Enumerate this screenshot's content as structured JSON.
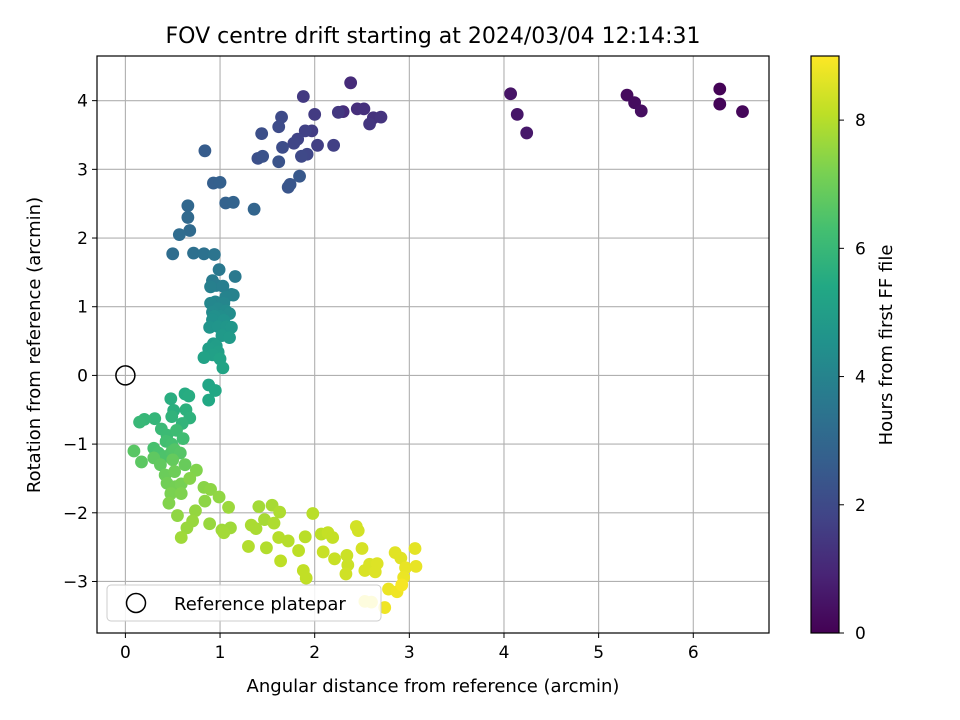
{
  "chart_data": {
    "type": "scatter",
    "title": "FOV centre drift starting at 2024/03/04 12:14:31",
    "xlabel": "Angular distance from reference (arcmin)",
    "ylabel": "Rotation from reference (arcmin)",
    "xlim": [
      -0.3,
      6.8
    ],
    "ylim": [
      -3.75,
      4.65
    ],
    "xticks": [
      0,
      1,
      2,
      3,
      4,
      5,
      6
    ],
    "yticks": [
      -3,
      -2,
      -1,
      0,
      1,
      2,
      3,
      4
    ],
    "grid": true,
    "colorbar": {
      "label": "Hours from first FF file",
      "colormap": "viridis",
      "range": [
        0,
        9
      ],
      "ticks": [
        0,
        2,
        4,
        6,
        8
      ]
    },
    "legend": {
      "position": "bottom-left",
      "entries": [
        {
          "label": "Reference platepar",
          "marker": "open-circle"
        }
      ]
    },
    "reference_point": {
      "x": 0,
      "y": 0
    },
    "series": [
      {
        "columns": [
          "x",
          "y",
          "hours"
        ],
        "points": [
          [
            6.28,
            4.17,
            0.05
          ],
          [
            6.28,
            3.95,
            0.1
          ],
          [
            6.52,
            3.84,
            0.15
          ],
          [
            5.3,
            4.08,
            0.25
          ],
          [
            5.38,
            3.97,
            0.3
          ],
          [
            5.45,
            3.85,
            0.35
          ],
          [
            4.07,
            4.1,
            0.5
          ],
          [
            4.14,
            3.8,
            0.55
          ],
          [
            4.24,
            3.53,
            0.6
          ],
          [
            2.38,
            4.26,
            1.1
          ],
          [
            2.3,
            3.84,
            1.15
          ],
          [
            2.45,
            3.88,
            1.2
          ],
          [
            2.52,
            3.88,
            1.25
          ],
          [
            2.62,
            3.75,
            1.3
          ],
          [
            2.7,
            3.76,
            1.35
          ],
          [
            2.58,
            3.66,
            1.4
          ],
          [
            2.25,
            3.83,
            1.45
          ],
          [
            1.88,
            4.06,
            1.5
          ],
          [
            2.0,
            3.8,
            1.55
          ],
          [
            1.97,
            3.56,
            1.6
          ],
          [
            2.03,
            3.35,
            1.65
          ],
          [
            2.2,
            3.35,
            1.7
          ],
          [
            1.9,
            3.56,
            1.75
          ],
          [
            1.82,
            3.44,
            1.8
          ],
          [
            1.78,
            3.38,
            1.85
          ],
          [
            1.92,
            3.22,
            1.9
          ],
          [
            1.86,
            3.19,
            1.95
          ],
          [
            1.65,
            3.76,
            2.0
          ],
          [
            1.62,
            3.62,
            2.05
          ],
          [
            1.66,
            3.32,
            2.1
          ],
          [
            1.44,
            3.52,
            2.15
          ],
          [
            1.4,
            3.16,
            2.2
          ],
          [
            1.45,
            3.19,
            2.25
          ],
          [
            1.62,
            3.11,
            2.3
          ],
          [
            1.72,
            2.74,
            2.35
          ],
          [
            1.74,
            2.78,
            2.4
          ],
          [
            1.84,
            2.9,
            2.45
          ],
          [
            0.84,
            3.27,
            2.6
          ],
          [
            0.93,
            2.8,
            2.7
          ],
          [
            1.0,
            2.81,
            2.75
          ],
          [
            1.06,
            2.51,
            2.8
          ],
          [
            1.14,
            2.52,
            2.85
          ],
          [
            1.36,
            2.42,
            2.9
          ],
          [
            0.66,
            2.47,
            3.0
          ],
          [
            0.66,
            2.3,
            3.05
          ],
          [
            0.68,
            2.11,
            3.1
          ],
          [
            0.57,
            2.05,
            3.15
          ],
          [
            0.5,
            1.77,
            3.2
          ],
          [
            0.72,
            1.78,
            3.3
          ],
          [
            0.83,
            1.77,
            3.35
          ],
          [
            0.94,
            1.76,
            3.45
          ],
          [
            0.99,
            1.54,
            3.6
          ],
          [
            1.16,
            1.44,
            3.65
          ],
          [
            0.92,
            1.38,
            3.7
          ],
          [
            0.96,
            1.31,
            3.75
          ],
          [
            1.03,
            1.3,
            3.8
          ],
          [
            0.9,
            1.29,
            3.85
          ],
          [
            1.12,
            1.18,
            3.9
          ],
          [
            1.14,
            1.17,
            3.95
          ],
          [
            1.06,
            1.14,
            4.0
          ],
          [
            0.95,
            1.07,
            4.05
          ],
          [
            1.04,
            1.05,
            4.1
          ],
          [
            0.9,
            1.05,
            4.15
          ],
          [
            0.98,
            0.97,
            4.2
          ],
          [
            0.92,
            0.92,
            4.25
          ],
          [
            1.06,
            0.94,
            4.3
          ],
          [
            1.1,
            0.9,
            4.35
          ],
          [
            1.0,
            0.86,
            4.4
          ],
          [
            0.94,
            0.86,
            4.45
          ],
          [
            0.92,
            0.81,
            4.5
          ],
          [
            1.04,
            0.8,
            4.55
          ],
          [
            0.89,
            0.7,
            4.6
          ],
          [
            0.98,
            0.71,
            4.65
          ],
          [
            1.07,
            0.71,
            4.7
          ],
          [
            1.12,
            0.7,
            4.75
          ],
          [
            1.02,
            0.58,
            4.8
          ],
          [
            1.1,
            0.55,
            4.85
          ],
          [
            0.93,
            0.46,
            4.9
          ],
          [
            0.96,
            0.43,
            4.95
          ],
          [
            0.88,
            0.39,
            5.0
          ],
          [
            0.98,
            0.34,
            5.05
          ],
          [
            0.92,
            0.3,
            5.1
          ],
          [
            0.83,
            0.26,
            5.15
          ],
          [
            1.0,
            0.24,
            5.2
          ],
          [
            1.03,
            0.11,
            5.25
          ],
          [
            0.88,
            -0.14,
            5.3
          ],
          [
            0.95,
            -0.22,
            5.35
          ],
          [
            0.88,
            -0.36,
            5.4
          ],
          [
            0.63,
            -0.27,
            5.5
          ],
          [
            0.67,
            -0.3,
            5.55
          ],
          [
            0.48,
            -0.34,
            5.6
          ],
          [
            0.51,
            -0.51,
            5.65
          ],
          [
            0.64,
            -0.5,
            5.7
          ],
          [
            0.68,
            -0.62,
            5.75
          ],
          [
            0.49,
            -0.6,
            5.8
          ],
          [
            0.6,
            -0.7,
            5.85
          ],
          [
            0.31,
            -0.63,
            5.9
          ],
          [
            0.2,
            -0.64,
            5.95
          ],
          [
            0.15,
            -0.68,
            6.0
          ],
          [
            0.38,
            -0.78,
            6.05
          ],
          [
            0.44,
            -0.87,
            6.1
          ],
          [
            0.54,
            -0.8,
            6.15
          ],
          [
            0.61,
            -0.92,
            6.2
          ],
          [
            0.43,
            -0.96,
            6.25
          ],
          [
            0.49,
            -1.0,
            6.3
          ],
          [
            0.3,
            -1.06,
            6.35
          ],
          [
            0.35,
            -1.13,
            6.4
          ],
          [
            0.42,
            -1.18,
            6.45
          ],
          [
            0.49,
            -1.11,
            6.5
          ],
          [
            0.52,
            -1.08,
            6.55
          ],
          [
            0.58,
            -1.13,
            6.6
          ],
          [
            0.09,
            -1.1,
            6.65
          ],
          [
            0.17,
            -1.26,
            6.7
          ],
          [
            0.3,
            -1.2,
            6.75
          ],
          [
            0.37,
            -1.3,
            6.8
          ],
          [
            0.5,
            -1.23,
            6.85
          ],
          [
            0.63,
            -1.3,
            6.9
          ],
          [
            0.42,
            -1.45,
            6.95
          ],
          [
            0.52,
            -1.4,
            7.0
          ],
          [
            0.44,
            -1.57,
            7.05
          ],
          [
            0.53,
            -1.62,
            7.1
          ],
          [
            0.59,
            -1.58,
            7.15
          ],
          [
            0.48,
            -1.72,
            7.2
          ],
          [
            0.59,
            -1.72,
            7.25
          ],
          [
            0.46,
            -1.86,
            7.3
          ],
          [
            0.75,
            -1.38,
            7.3
          ],
          [
            0.68,
            -1.5,
            7.35
          ],
          [
            0.83,
            -1.63,
            7.4
          ],
          [
            0.9,
            -1.66,
            7.45
          ],
          [
            0.84,
            -1.83,
            7.45
          ],
          [
            0.99,
            -1.77,
            7.5
          ],
          [
            0.55,
            -2.04,
            7.5
          ],
          [
            0.74,
            -1.97,
            7.55
          ],
          [
            0.71,
            -2.12,
            7.6
          ],
          [
            0.65,
            -2.22,
            7.6
          ],
          [
            0.89,
            -2.16,
            7.6
          ],
          [
            1.09,
            -1.92,
            7.65
          ],
          [
            1.02,
            -2.25,
            7.7
          ],
          [
            1.11,
            -2.22,
            7.7
          ],
          [
            0.59,
            -2.36,
            7.7
          ],
          [
            1.04,
            -2.29,
            7.75
          ],
          [
            1.41,
            -1.91,
            7.75
          ],
          [
            1.55,
            -1.89,
            7.8
          ],
          [
            1.47,
            -2.1,
            7.8
          ],
          [
            1.33,
            -2.18,
            7.85
          ],
          [
            1.38,
            -2.23,
            7.85
          ],
          [
            1.63,
            -1.99,
            7.9
          ],
          [
            1.57,
            -2.15,
            7.9
          ],
          [
            1.3,
            -2.49,
            7.95
          ],
          [
            1.49,
            -2.51,
            7.95
          ],
          [
            1.62,
            -2.36,
            8.0
          ],
          [
            1.72,
            -2.41,
            8.0
          ],
          [
            1.9,
            -2.35,
            8.05
          ],
          [
            1.98,
            -2.01,
            8.05
          ],
          [
            2.07,
            -2.31,
            8.1
          ],
          [
            1.83,
            -2.55,
            8.1
          ],
          [
            1.64,
            -2.7,
            8.1
          ],
          [
            1.88,
            -2.84,
            8.15
          ],
          [
            1.91,
            -2.95,
            8.15
          ],
          [
            2.14,
            -2.29,
            8.2
          ],
          [
            2.19,
            -2.36,
            8.2
          ],
          [
            2.09,
            -2.57,
            8.25
          ],
          [
            2.21,
            -2.67,
            8.25
          ],
          [
            2.34,
            -2.62,
            8.3
          ],
          [
            2.35,
            -2.76,
            8.3
          ],
          [
            2.33,
            -2.89,
            8.35
          ],
          [
            2.44,
            -2.2,
            8.4
          ],
          [
            2.46,
            -2.26,
            8.4
          ],
          [
            2.5,
            -2.52,
            8.45
          ],
          [
            2.58,
            -2.75,
            8.5
          ],
          [
            2.53,
            -2.84,
            8.5
          ],
          [
            2.64,
            -2.86,
            8.55
          ],
          [
            2.66,
            -2.74,
            8.55
          ],
          [
            2.85,
            -2.58,
            8.6
          ],
          [
            2.91,
            -2.66,
            8.6
          ],
          [
            3.06,
            -2.52,
            8.65
          ],
          [
            2.96,
            -2.8,
            8.7
          ],
          [
            3.07,
            -2.78,
            8.7
          ],
          [
            2.94,
            -2.94,
            8.75
          ],
          [
            2.78,
            -3.11,
            8.75
          ],
          [
            2.87,
            -3.15,
            8.8
          ],
          [
            2.74,
            -3.38,
            8.8
          ],
          [
            2.6,
            -3.3,
            8.85
          ],
          [
            2.53,
            -3.29,
            8.85
          ],
          [
            2.92,
            -3.05,
            8.9
          ]
        ]
      }
    ]
  }
}
